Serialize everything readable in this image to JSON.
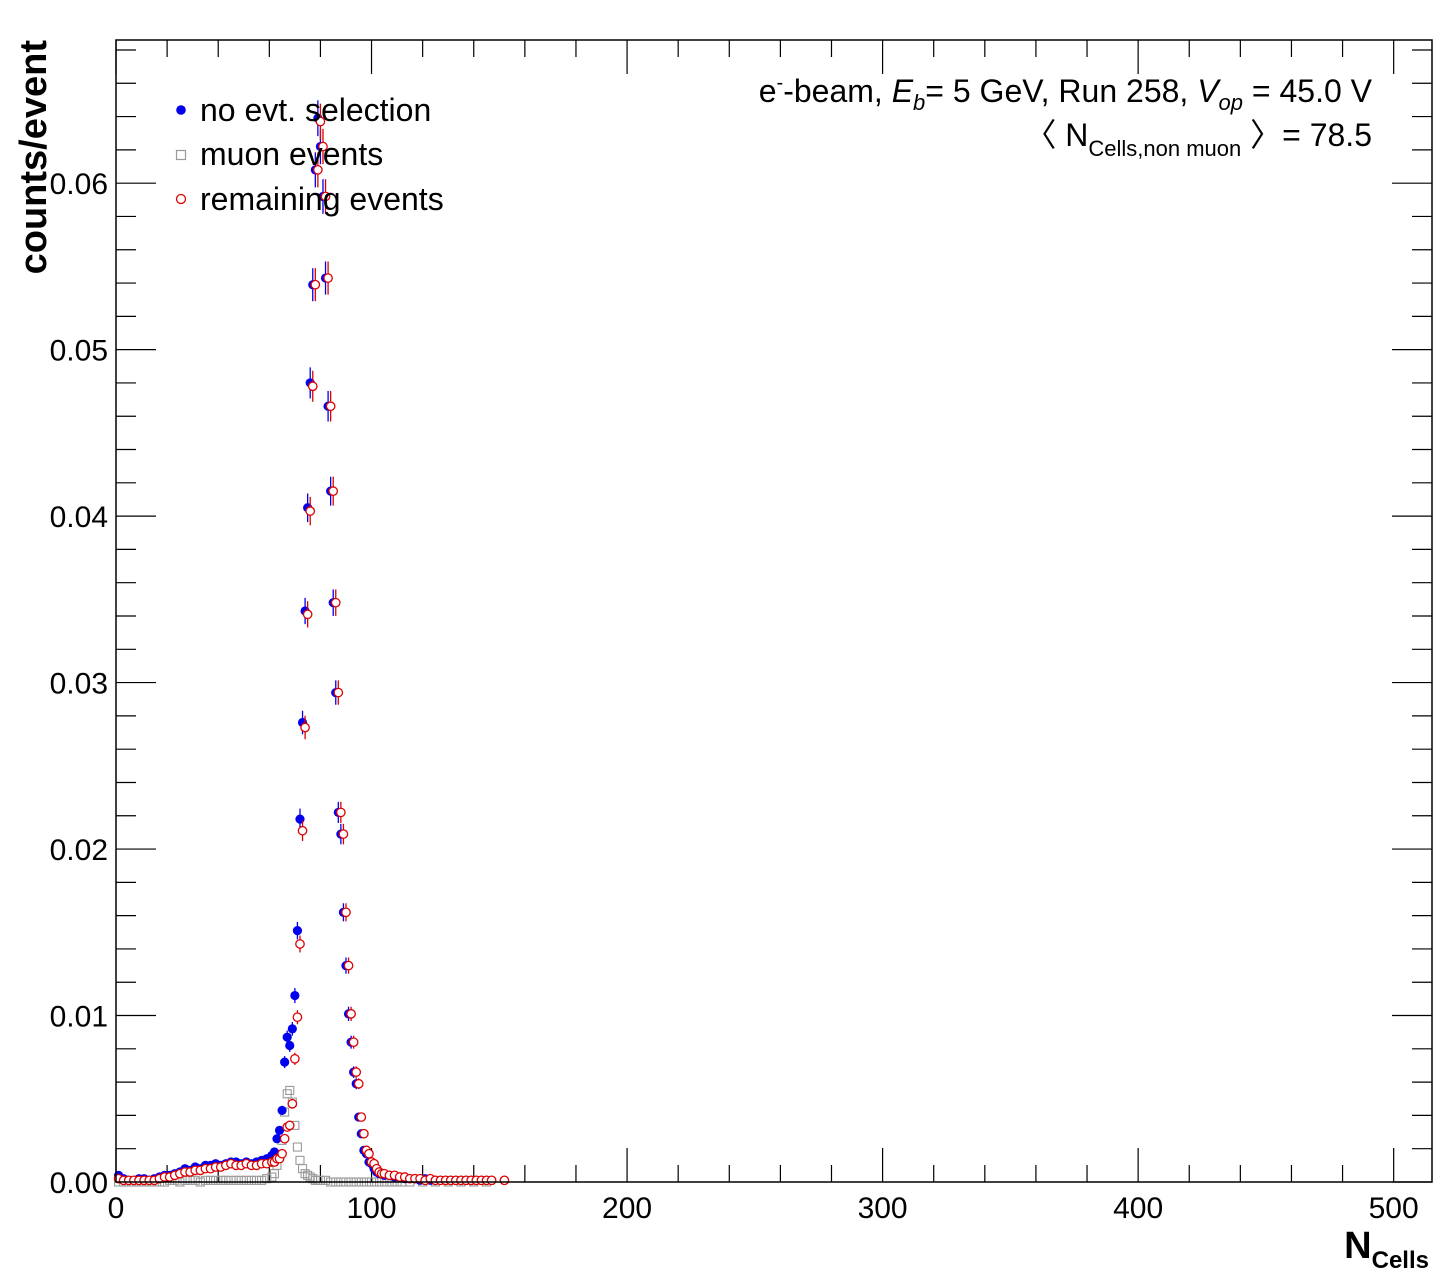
{
  "chart_data": {
    "type": "scatter",
    "xlabel": "N",
    "xlabel_sub": "Cells",
    "ylabel": "counts/event",
    "xlim": [
      0,
      515
    ],
    "ylim": [
      0,
      0.0686
    ],
    "x_ticks": [
      0,
      100,
      200,
      300,
      400,
      500
    ],
    "x_tick_labels": [
      "0",
      "100",
      "200",
      "300",
      "400",
      "500"
    ],
    "y_ticks": [
      0,
      0.01,
      0.02,
      0.03,
      0.04,
      0.05,
      0.06
    ],
    "y_tick_labels": [
      "0.00",
      "0.01",
      "0.02",
      "0.03",
      "0.04",
      "0.05",
      "0.06"
    ],
    "grid": false,
    "legend_position": "top-left",
    "annotations": {
      "line1": {
        "p1": "e",
        "p1_sup": "-",
        "p2": "-beam, ",
        "p3": "E",
        "p3_sub": "b",
        "p4": "= 5 GeV, Run 258, ",
        "p5": "V",
        "p5_sub": "op",
        "p6": " = 45.0 V"
      },
      "line2": {
        "p1": "〈 N",
        "p1_sub": "Cells,non muon",
        "p2": " 〉= 78.5"
      }
    },
    "series": [
      {
        "name": "no evt. selection",
        "marker": "filled-circle",
        "color": "#0000ee",
        "x": [
          1,
          3,
          5,
          7,
          9,
          11,
          13,
          15,
          17,
          19,
          21,
          23,
          25,
          27,
          29,
          31,
          33,
          35,
          37,
          39,
          41,
          43,
          45,
          47,
          49,
          51,
          53,
          55,
          57,
          59,
          61,
          62,
          63,
          64,
          65,
          66,
          67,
          68,
          69,
          70,
          71,
          72,
          73,
          74,
          75,
          76,
          77,
          78,
          79,
          80,
          81,
          82,
          83,
          84,
          85,
          86,
          87,
          88,
          89,
          90,
          91,
          92,
          93,
          94,
          95,
          96,
          97,
          98,
          99,
          100,
          101,
          102,
          103,
          104,
          105,
          107,
          109,
          111,
          113,
          115,
          117,
          119,
          121,
          123,
          125,
          127,
          129,
          131,
          133,
          135,
          137,
          139,
          141,
          143,
          145,
          147,
          152
        ],
        "y": [
          0.0004,
          0.0002,
          0.0001,
          0.0001,
          0.0002,
          0.0002,
          0.0001,
          0.0002,
          0.0003,
          0.0004,
          0.0004,
          0.0005,
          0.0006,
          0.0008,
          0.0007,
          0.0009,
          0.0008,
          0.001,
          0.001,
          0.0011,
          0.001,
          0.0011,
          0.0012,
          0.0012,
          0.0011,
          0.0012,
          0.0011,
          0.0012,
          0.0013,
          0.0014,
          0.0016,
          0.0018,
          0.0026,
          0.0031,
          0.0043,
          0.0072,
          0.0087,
          0.0082,
          0.0092,
          0.0112,
          0.0151,
          0.0218,
          0.0276,
          0.0343,
          0.0405,
          0.048,
          0.0539,
          0.0608,
          0.0639,
          0.0622,
          0.0592,
          0.0543,
          0.0466,
          0.0415,
          0.0348,
          0.0294,
          0.0222,
          0.0209,
          0.0162,
          0.013,
          0.0101,
          0.0084,
          0.0066,
          0.0059,
          0.0039,
          0.0029,
          0.0019,
          0.0017,
          0.0012,
          0.0011,
          0.0008,
          0.0006,
          0.0005,
          0.0005,
          0.0004,
          0.0004,
          0.0003,
          0.0003,
          0.0002,
          0.0002,
          0.0002,
          0.0001,
          0.0002,
          0.0001,
          0.0001,
          0.0001,
          0.0001,
          0.0001,
          0.0001,
          0.0001,
          0.0001,
          0.0001,
          0.0001,
          0.0001,
          0.0001,
          0.0001,
          0.0001
        ]
      },
      {
        "name": "muon events",
        "marker": "open-square",
        "color": "#9a9a9a",
        "x": [
          1,
          3,
          5,
          7,
          9,
          11,
          13,
          15,
          17,
          19,
          21,
          23,
          25,
          27,
          29,
          31,
          33,
          35,
          37,
          39,
          41,
          43,
          45,
          47,
          49,
          51,
          53,
          55,
          57,
          59,
          61,
          62,
          63,
          64,
          65,
          66,
          67,
          68,
          69,
          70,
          71,
          72,
          73,
          74,
          75,
          76,
          77,
          78,
          79,
          80,
          82,
          84,
          86,
          88,
          90,
          92,
          94,
          96,
          98,
          100,
          102,
          104,
          106,
          108,
          110,
          112,
          115,
          120,
          125,
          130,
          135,
          140,
          145
        ],
        "y": [
          0,
          0,
          0,
          0,
          0,
          0,
          0,
          0,
          0,
          0,
          0.0001,
          0.0001,
          0,
          0.0001,
          0.0001,
          0.0001,
          0,
          0.0001,
          0.0001,
          0.0001,
          0.0001,
          0.0001,
          0.0001,
          0.0001,
          0.0001,
          0.0001,
          0.0001,
          0.0001,
          0.0001,
          0.0002,
          0.0003,
          0.0005,
          0.001,
          0.0016,
          0.0025,
          0.0042,
          0.0053,
          0.0055,
          0.0048,
          0.0034,
          0.0021,
          0.0013,
          0.0008,
          0.0005,
          0.0004,
          0.0003,
          0.0002,
          0.0001,
          0.0001,
          0.0001,
          0.0001,
          0,
          0,
          0,
          0,
          0,
          0,
          0,
          0,
          0,
          0,
          0,
          0,
          0,
          0,
          0,
          0,
          0,
          0,
          0,
          0,
          0,
          0
        ]
      },
      {
        "name": "remaining events",
        "marker": "open-circle",
        "color": "#dd0000",
        "x": [
          1,
          3,
          5,
          7,
          9,
          11,
          13,
          15,
          17,
          19,
          21,
          23,
          25,
          27,
          29,
          31,
          33,
          35,
          37,
          39,
          41,
          43,
          45,
          47,
          49,
          51,
          53,
          55,
          57,
          59,
          61,
          62,
          63,
          64,
          65,
          66,
          67,
          68,
          69,
          70,
          71,
          72,
          73,
          74,
          75,
          76,
          77,
          78,
          79,
          80,
          81,
          82,
          83,
          84,
          85,
          86,
          87,
          88,
          89,
          90,
          91,
          92,
          93,
          94,
          95,
          96,
          97,
          98,
          99,
          100,
          101,
          102,
          103,
          104,
          105,
          107,
          109,
          111,
          113,
          115,
          117,
          119,
          121,
          123,
          125,
          127,
          129,
          131,
          133,
          135,
          137,
          139,
          141,
          143,
          145,
          147,
          152
        ],
        "y": [
          0.0002,
          0.0001,
          0.0001,
          0.0001,
          0.0001,
          0.0001,
          0.0001,
          0.0001,
          0.0002,
          0.0003,
          0.0003,
          0.0004,
          0.0005,
          0.0006,
          0.0006,
          0.0007,
          0.0007,
          0.0008,
          0.0008,
          0.0009,
          0.0009,
          0.001,
          0.0011,
          0.001,
          0.001,
          0.0011,
          0.001,
          0.001,
          0.0011,
          0.0011,
          0.0012,
          0.0012,
          0.0014,
          0.0014,
          0.0017,
          0.0026,
          0.0033,
          0.0034,
          0.0047,
          0.0074,
          0.0099,
          0.0143,
          0.0211,
          0.0273,
          0.0341,
          0.0403,
          0.0478,
          0.0539,
          0.0608,
          0.0637,
          0.0622,
          0.0592,
          0.0543,
          0.0466,
          0.0415,
          0.0348,
          0.0294,
          0.0222,
          0.0209,
          0.0162,
          0.013,
          0.0101,
          0.0084,
          0.0066,
          0.0059,
          0.0039,
          0.0029,
          0.0019,
          0.0017,
          0.0012,
          0.0011,
          0.0008,
          0.0006,
          0.0005,
          0.0005,
          0.0004,
          0.0004,
          0.0003,
          0.0003,
          0.0002,
          0.0002,
          0.0002,
          0.0001,
          0.0002,
          0.0001,
          0.0001,
          0.0001,
          0.0001,
          0.0001,
          0.0001,
          0.0001,
          0.0001,
          0.0001,
          0.0001,
          0.0001,
          0.0001,
          0.0001
        ]
      }
    ]
  }
}
